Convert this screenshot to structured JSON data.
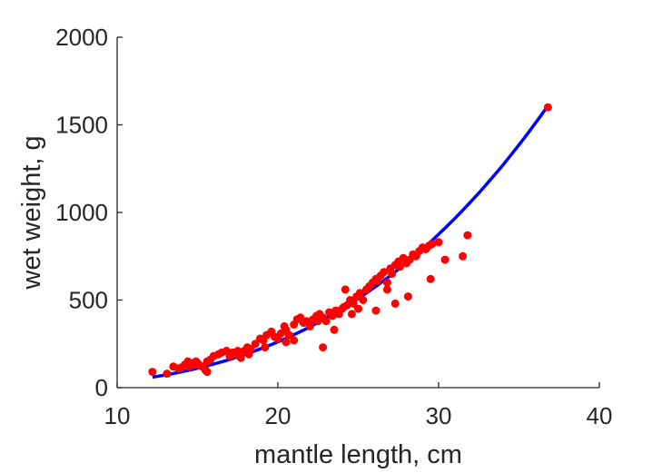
{
  "chart_data": {
    "type": "scatter",
    "xlabel": "mantle length, cm",
    "ylabel": "wet weight, g",
    "xlim": [
      10,
      40
    ],
    "ylim": [
      0,
      2000
    ],
    "xticks": [
      "10",
      "20",
      "30",
      "40"
    ],
    "yticks": [
      "0",
      "500",
      "1000",
      "1500",
      "2000"
    ],
    "grid": false,
    "colors": {
      "points": "#ff0000",
      "fit": "#0000ff",
      "axis": "#262626"
    },
    "series": [
      {
        "kind": "points",
        "x": [
          12.2,
          13.1,
          13.5,
          13.8,
          14.0,
          14.2,
          14.4,
          14.5,
          14.6,
          14.8,
          14.9,
          15.0,
          15.1,
          15.3,
          15.5,
          15.6,
          15.8,
          16.0,
          16.3,
          16.5,
          16.8,
          17.0,
          17.2,
          17.4,
          17.7,
          17.9,
          18.1,
          18.3,
          18.6,
          18.9,
          19.1,
          19.3,
          19.6,
          19.8,
          20.0,
          20.2,
          20.4,
          20.5,
          20.7,
          21.0,
          21.2,
          21.4,
          21.6,
          21.8,
          22.0,
          22.2,
          22.4,
          22.6,
          22.8,
          23.0,
          23.2,
          23.4,
          23.6,
          23.8,
          24.0,
          24.1,
          24.3,
          24.5,
          24.7,
          24.9,
          25.1,
          25.3,
          25.5,
          25.7,
          25.9,
          26.1,
          26.2,
          26.4,
          26.6,
          26.8,
          27.0,
          27.1,
          27.3,
          27.5,
          27.6,
          27.8,
          28.0,
          28.2,
          28.4,
          28.6,
          28.8,
          29.0,
          29.2,
          29.4,
          29.6,
          30.0,
          30.4,
          31.5,
          31.8,
          36.8,
          22.8,
          24.2,
          26.1,
          27.3,
          15.6,
          18.2,
          20.5,
          23.5,
          25.0,
          26.8,
          28.1,
          29.5,
          21.0,
          22.5,
          24.6,
          19.2,
          17.5
        ],
        "y": [
          90,
          80,
          120,
          110,
          115,
          130,
          150,
          120,
          140,
          130,
          150,
          140,
          130,
          120,
          100,
          150,
          160,
          180,
          190,
          200,
          210,
          180,
          200,
          190,
          170,
          210,
          230,
          220,
          250,
          280,
          270,
          300,
          320,
          290,
          280,
          310,
          350,
          330,
          300,
          360,
          390,
          400,
          370,
          380,
          350,
          390,
          410,
          420,
          400,
          380,
          430,
          410,
          440,
          420,
          450,
          460,
          470,
          500,
          480,
          520,
          540,
          500,
          560,
          580,
          600,
          620,
          610,
          640,
          660,
          600,
          680,
          650,
          700,
          720,
          690,
          740,
          710,
          730,
          760,
          750,
          780,
          800,
          790,
          810,
          820,
          830,
          730,
          750,
          870,
          1600,
          230,
          560,
          440,
          480,
          90,
          190,
          260,
          330,
          450,
          560,
          520,
          620,
          270,
          380,
          420,
          230,
          210
        ]
      },
      {
        "kind": "fit",
        "a": 0.0347,
        "b": 2.98,
        "x_range": [
          12.2,
          36.8
        ]
      }
    ]
  }
}
